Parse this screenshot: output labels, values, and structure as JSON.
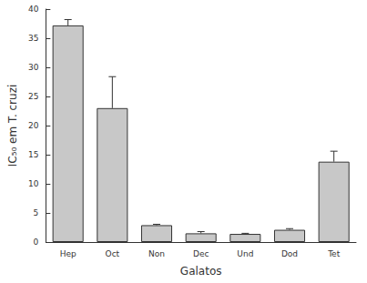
{
  "chart_data": {
    "type": "bar",
    "x_label": "Galatos",
    "y_label": "IC₅₀ em T. cruzi",
    "categories": [
      "Hep",
      "Oct",
      "Non",
      "Dec",
      "Und",
      "Dod",
      "Tet"
    ],
    "values": [
      37.2,
      23.0,
      2.9,
      1.5,
      1.4,
      2.1,
      13.8
    ],
    "errors": [
      1.0,
      5.4,
      0.15,
      0.3,
      0.1,
      0.2,
      1.8
    ],
    "color": "#c8c8c8",
    "ylim": [
      0,
      40
    ],
    "yticks": [
      0,
      5,
      10,
      15,
      20,
      25,
      30,
      35,
      40
    ],
    "grid": false
  }
}
